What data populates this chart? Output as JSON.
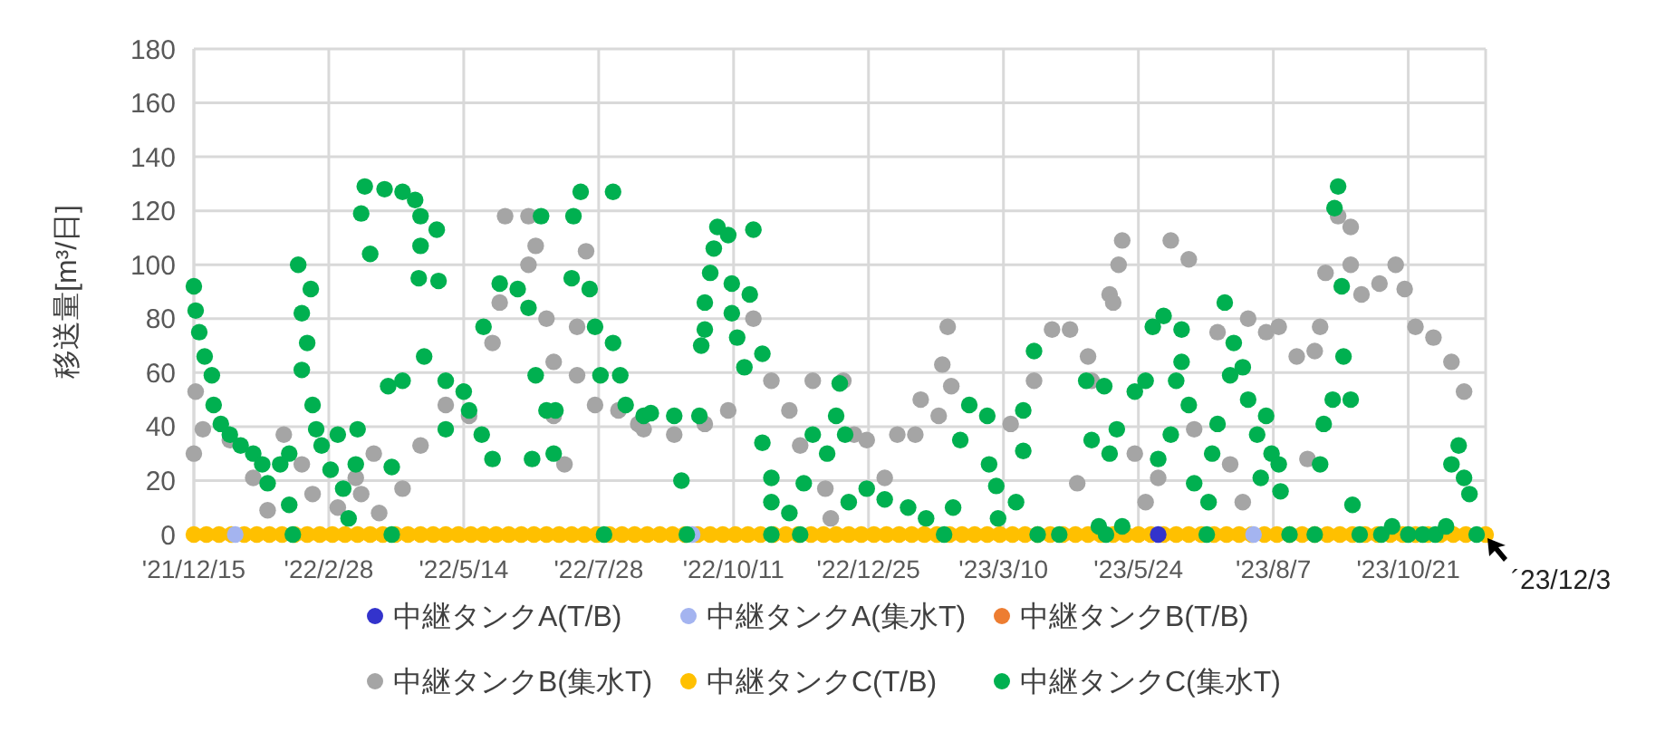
{
  "chart_data": {
    "type": "scatter",
    "ylabel": "移送量[m³/日]",
    "xlim": [
      "2021-12-15",
      "2023-12-03"
    ],
    "ylim": [
      0,
      180
    ],
    "yticks": [
      0,
      20,
      40,
      60,
      80,
      100,
      120,
      140,
      160,
      180
    ],
    "xticks": [
      {
        "value": "2021-12-15",
        "label": "'21/12/15"
      },
      {
        "value": "2022-02-28",
        "label": "'22/2/28"
      },
      {
        "value": "2022-05-14",
        "label": "'22/5/14"
      },
      {
        "value": "2022-07-28",
        "label": "'22/7/28"
      },
      {
        "value": "2022-10-11",
        "label": "'22/10/11"
      },
      {
        "value": "2022-12-25",
        "label": "'22/12/25"
      },
      {
        "value": "2023-03-10",
        "label": "'23/3/10"
      },
      {
        "value": "2023-05-24",
        "label": "'23/5/24"
      },
      {
        "value": "2023-08-07",
        "label": "'23/8/7"
      },
      {
        "value": "2023-10-21",
        "label": "'23/10/21"
      }
    ],
    "grid": true,
    "legend": "bottom",
    "marker": "circle",
    "annotations": [
      {
        "text": "´23/12/3",
        "x": "2023-12-03",
        "y": 0
      }
    ],
    "series": [
      {
        "name": "中継タンクA(T/B)",
        "color": "#3333cc",
        "x": [
          "2023-06-04"
        ],
        "values": [
          0
        ]
      },
      {
        "name": "中継タンクA(集水T)",
        "color": "#a4b4f0",
        "x": [
          "2022-01-07",
          "2022-09-18",
          "2023-07-27"
        ],
        "values": [
          0,
          0,
          0
        ]
      },
      {
        "name": "中継タンクB(T/B)",
        "color": "#ed7d31"
      },
      {
        "name": "中継タンクB(集水T)",
        "color": "#a5a5a5",
        "x": [
          "2021-12-15",
          "2021-12-16",
          "2021-12-20",
          "2022-01-04",
          "2022-01-17",
          "2022-01-25",
          "2022-02-03",
          "2022-02-13",
          "2022-02-19",
          "2022-03-05",
          "2022-03-15",
          "2022-03-18",
          "2022-03-25",
          "2022-03-28",
          "2022-04-10",
          "2022-04-20",
          "2022-05-04",
          "2022-05-17",
          "2022-05-30",
          "2022-06-03",
          "2022-06-06",
          "2022-06-19",
          "2022-06-19",
          "2022-06-23",
          "2022-06-29",
          "2022-07-03",
          "2022-07-03",
          "2022-07-09",
          "2022-07-16",
          "2022-07-16",
          "2022-07-21",
          "2022-07-26",
          "2022-08-08",
          "2022-08-19",
          "2022-08-22",
          "2022-09-08",
          "2022-09-25",
          "2022-10-08",
          "2022-10-22",
          "2022-11-01",
          "2022-11-11",
          "2022-11-17",
          "2022-11-24",
          "2022-12-01",
          "2022-12-04",
          "2022-12-11",
          "2022-12-17",
          "2022-12-24",
          "2023-01-03",
          "2023-01-10",
          "2023-01-20",
          "2023-01-23",
          "2023-02-02",
          "2023-02-04",
          "2023-02-07",
          "2023-02-09",
          "2023-03-14",
          "2023-03-27",
          "2023-04-06",
          "2023-04-16",
          "2023-04-20",
          "2023-04-26",
          "2023-04-28",
          "2023-05-08",
          "2023-05-10",
          "2023-05-13",
          "2023-05-15",
          "2023-05-22",
          "2023-05-28",
          "2023-06-04",
          "2023-06-11",
          "2023-06-21",
          "2023-06-24",
          "2023-07-07",
          "2023-07-14",
          "2023-07-21",
          "2023-07-24",
          "2023-08-03",
          "2023-08-10",
          "2023-08-20",
          "2023-08-26",
          "2023-08-30",
          "2023-09-02",
          "2023-09-05",
          "2023-09-12",
          "2023-09-19",
          "2023-09-19",
          "2023-09-25",
          "2023-10-05",
          "2023-10-14",
          "2023-10-19",
          "2023-10-25",
          "2023-11-04",
          "2023-11-14",
          "2023-11-21"
        ],
        "values": [
          30,
          53,
          39,
          35,
          21,
          9,
          37,
          26,
          15,
          10,
          21,
          15,
          30,
          8,
          17,
          33,
          48,
          44,
          71,
          86,
          118,
          118,
          100,
          107,
          80,
          64,
          44,
          26,
          59,
          77,
          105,
          48,
          46,
          41,
          39,
          37,
          41,
          46,
          80,
          57,
          46,
          33,
          57,
          17,
          6,
          57,
          37,
          35,
          21,
          37,
          37,
          50,
          44,
          63,
          77,
          55,
          41,
          57,
          76,
          76,
          19,
          66,
          57,
          89,
          86,
          100,
          109,
          30,
          12,
          21,
          109,
          102,
          39,
          75,
          26,
          12,
          80,
          75,
          77,
          66,
          28,
          68,
          77,
          97,
          118,
          114,
          100,
          89,
          93,
          100,
          91,
          77,
          73,
          64,
          53
        ]
      },
      {
        "name": "中継タンクC(T/B)",
        "color": "#ffc000",
        "x": [
          "2021-12-15",
          "2021-12-22",
          "2021-12-29",
          "2022-01-05",
          "2022-01-12",
          "2022-01-19",
          "2022-01-26",
          "2022-02-02",
          "2022-02-09",
          "2022-02-16",
          "2022-02-23",
          "2022-03-02",
          "2022-03-09",
          "2022-03-16",
          "2022-03-23",
          "2022-03-30",
          "2022-04-06",
          "2022-04-13",
          "2022-04-20",
          "2022-04-27",
          "2022-05-04",
          "2022-05-11",
          "2022-05-18",
          "2022-05-25",
          "2022-06-01",
          "2022-06-08",
          "2022-06-15",
          "2022-06-22",
          "2022-06-29",
          "2022-07-06",
          "2022-07-13",
          "2022-07-20",
          "2022-07-27",
          "2022-08-03",
          "2022-08-10",
          "2022-08-17",
          "2022-08-24",
          "2022-08-31",
          "2022-09-07",
          "2022-09-14",
          "2022-09-21",
          "2022-09-28",
          "2022-10-05",
          "2022-10-12",
          "2022-10-19",
          "2022-10-26",
          "2022-11-02",
          "2022-11-09",
          "2022-11-16",
          "2022-11-23",
          "2022-11-30",
          "2022-12-07",
          "2022-12-14",
          "2022-12-21",
          "2022-12-28",
          "2023-01-04",
          "2023-01-11",
          "2023-01-18",
          "2023-01-25",
          "2023-02-01",
          "2023-02-08",
          "2023-02-15",
          "2023-02-22",
          "2023-03-01",
          "2023-03-08",
          "2023-03-15",
          "2023-03-22",
          "2023-03-29",
          "2023-04-05",
          "2023-04-12",
          "2023-04-19",
          "2023-04-26",
          "2023-05-03",
          "2023-05-10",
          "2023-05-17",
          "2023-05-24",
          "2023-05-31",
          "2023-06-07",
          "2023-06-14",
          "2023-06-21",
          "2023-06-28",
          "2023-07-05",
          "2023-07-12",
          "2023-07-19",
          "2023-07-26",
          "2023-08-02",
          "2023-08-09",
          "2023-08-16",
          "2023-08-23",
          "2023-08-30",
          "2023-09-06",
          "2023-09-13",
          "2023-09-20",
          "2023-09-27",
          "2023-10-04",
          "2023-10-11",
          "2023-10-18",
          "2023-10-25",
          "2023-11-01",
          "2023-11-08",
          "2023-11-15",
          "2023-11-22",
          "2023-12-03"
        ],
        "values": [
          0,
          0,
          0,
          0,
          0,
          0,
          0,
          0,
          0,
          0,
          0,
          0,
          0,
          0,
          0,
          0,
          0,
          0,
          0,
          0,
          0,
          0,
          0,
          0,
          0,
          0,
          0,
          0,
          0,
          0,
          0,
          0,
          0,
          0,
          0,
          0,
          0,
          0,
          0,
          0,
          0,
          0,
          0,
          0,
          0,
          0,
          0,
          0,
          0,
          0,
          0,
          0,
          0,
          0,
          0,
          0,
          0,
          0,
          0,
          0,
          0,
          0,
          0,
          0,
          0,
          0,
          0,
          0,
          0,
          0,
          0,
          0,
          0,
          0,
          0,
          0,
          0,
          0,
          0,
          0,
          0,
          0,
          0,
          0,
          0,
          0,
          0,
          0,
          0,
          0,
          0,
          0,
          0,
          0,
          0,
          0,
          0,
          0,
          0,
          0,
          0,
          0,
          0
        ]
      },
      {
        "name": "中継タンクC(集水T)",
        "color": "#00b050",
        "x": [
          "2021-12-15",
          "2021-12-16",
          "2021-12-18",
          "2021-12-21",
          "2021-12-25",
          "2021-12-26",
          "2021-12-30",
          "2022-01-04",
          "2022-01-10",
          "2022-01-17",
          "2022-01-22",
          "2022-01-25",
          "2022-02-01",
          "2022-02-06",
          "2022-02-06",
          "2022-02-08",
          "2022-02-11",
          "2022-02-13",
          "2022-02-13",
          "2022-02-16",
          "2022-02-18",
          "2022-02-19",
          "2022-02-21",
          "2022-02-24",
          "2022-03-01",
          "2022-03-05",
          "2022-03-08",
          "2022-03-11",
          "2022-03-15",
          "2022-03-16",
          "2022-03-18",
          "2022-03-20",
          "2022-03-23",
          "2022-03-31",
          "2022-04-02",
          "2022-04-04",
          "2022-04-04",
          "2022-04-10",
          "2022-04-10",
          "2022-04-17",
          "2022-04-19",
          "2022-04-20",
          "2022-04-20",
          "2022-04-22",
          "2022-04-29",
          "2022-04-30",
          "2022-05-04",
          "2022-05-04",
          "2022-05-14",
          "2022-05-17",
          "2022-05-24",
          "2022-05-25",
          "2022-05-30",
          "2022-06-03",
          "2022-06-13",
          "2022-06-19",
          "2022-06-21",
          "2022-06-23",
          "2022-06-26",
          "2022-06-29",
          "2022-07-03",
          "2022-07-04",
          "2022-07-13",
          "2022-07-14",
          "2022-07-18",
          "2022-07-23",
          "2022-07-26",
          "2022-07-29",
          "2022-07-31",
          "2022-08-05",
          "2022-08-05",
          "2022-08-09",
          "2022-08-12",
          "2022-08-22",
          "2022-08-26",
          "2022-09-08",
          "2022-09-12",
          "2022-09-15",
          "2022-09-22",
          "2022-09-23",
          "2022-09-25",
          "2022-09-25",
          "2022-09-28",
          "2022-09-30",
          "2022-10-02",
          "2022-10-08",
          "2022-10-10",
          "2022-10-10",
          "2022-10-13",
          "2022-10-17",
          "2022-10-20",
          "2022-10-22",
          "2022-10-27",
          "2022-10-27",
          "2022-11-01",
          "2022-11-01",
          "2022-11-01",
          "2022-11-11",
          "2022-11-17",
          "2022-11-19",
          "2022-11-24",
          "2022-12-02",
          "2022-12-07",
          "2022-12-09",
          "2022-12-12",
          "2022-12-14",
          "2022-12-24",
          "2023-01-03",
          "2023-01-16",
          "2023-01-26",
          "2023-02-05",
          "2023-02-10",
          "2023-02-14",
          "2023-02-19",
          "2023-03-01",
          "2023-03-02",
          "2023-03-06",
          "2023-03-07",
          "2023-03-17",
          "2023-03-21",
          "2023-03-21",
          "2023-03-27",
          "2023-03-29",
          "2023-04-10",
          "2023-04-25",
          "2023-04-28",
          "2023-05-02",
          "2023-05-05",
          "2023-05-06",
          "2023-05-08",
          "2023-05-12",
          "2023-05-15",
          "2023-05-22",
          "2023-05-28",
          "2023-06-01",
          "2023-06-04",
          "2023-06-07",
          "2023-06-11",
          "2023-06-14",
          "2023-06-17",
          "2023-06-17",
          "2023-06-21",
          "2023-06-24",
          "2023-07-01",
          "2023-07-02",
          "2023-07-04",
          "2023-07-07",
          "2023-07-11",
          "2023-07-14",
          "2023-07-16",
          "2023-07-21",
          "2023-07-24",
          "2023-07-29",
          "2023-07-31",
          "2023-08-03",
          "2023-08-06",
          "2023-08-10",
          "2023-08-11",
          "2023-08-16",
          "2023-08-30",
          "2023-09-02",
          "2023-09-04",
          "2023-09-09",
          "2023-09-10",
          "2023-09-12",
          "2023-09-14",
          "2023-09-15",
          "2023-09-19",
          "2023-09-20",
          "2023-09-24",
          "2023-10-06",
          "2023-10-12",
          "2023-10-21",
          "2023-10-29",
          "2023-11-05",
          "2023-11-11",
          "2023-11-14",
          "2023-11-18",
          "2023-11-21",
          "2023-11-24",
          "2023-11-28"
        ],
        "values": [
          92,
          83,
          75,
          66,
          59,
          48,
          41,
          37,
          33,
          30,
          26,
          19,
          26,
          30,
          11,
          0,
          100,
          82,
          61,
          71,
          91,
          48,
          39,
          33,
          24,
          37,
          17,
          6,
          26,
          39,
          119,
          129,
          104,
          128,
          55,
          0,
          25,
          127,
          57,
          124,
          95,
          118,
          107,
          66,
          113,
          94,
          57,
          39,
          53,
          46,
          37,
          77,
          28,
          93,
          91,
          84,
          28,
          59,
          118,
          46,
          30,
          46,
          95,
          118,
          127,
          91,
          77,
          59,
          0,
          127,
          71,
          59,
          48,
          44,
          45,
          44,
          20,
          0,
          44,
          70,
          76,
          86,
          97,
          106,
          114,
          111,
          93,
          82,
          73,
          62,
          89,
          113,
          67,
          34,
          21,
          12,
          0,
          8,
          0,
          19,
          37,
          30,
          44,
          56,
          37,
          12,
          17,
          13,
          10,
          6,
          0,
          10,
          35,
          48,
          44,
          26,
          18,
          6,
          12,
          46,
          31,
          68,
          0,
          0,
          57,
          35,
          3,
          55,
          0,
          30,
          39,
          3,
          53,
          57,
          77,
          28,
          81,
          37,
          57,
          76,
          64,
          48,
          19,
          0,
          12,
          30,
          41,
          86,
          59,
          71,
          62,
          50,
          37,
          21,
          44,
          30,
          26,
          16,
          0,
          0,
          26,
          41,
          50,
          121,
          129,
          92,
          66,
          50,
          11,
          0,
          0,
          3,
          0,
          0,
          0,
          3,
          26,
          33,
          21,
          15,
          0
        ]
      }
    ]
  }
}
